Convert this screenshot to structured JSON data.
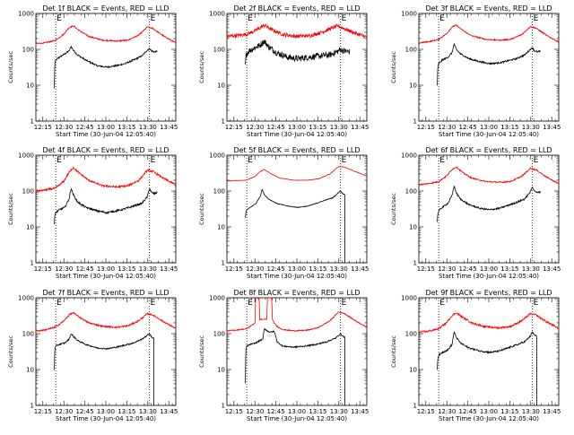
{
  "figure": {
    "ylabel": "Counts/sec",
    "xlabel": "Start Time (30-Jun-04 12:05:40)",
    "ytick_labels": [
      "1",
      "10",
      "100",
      "1000"
    ],
    "xtick_labels": [
      "12:15",
      "12:30",
      "12:45",
      "13:00",
      "13:15",
      "13:30",
      "13:45"
    ],
    "marker_glyph": "E",
    "colors": {
      "events": "#000000",
      "lld": "#ff0000",
      "frame": "#000000",
      "background": "#ffffff"
    }
  },
  "chart_data": [
    {
      "type": "line",
      "title": "Det 1f BLACK = Events, RED = LLD",
      "xlabel": "Start Time (30-Jun-04 12:05:40)",
      "ylabel": "Counts/sec",
      "x_unit": "minutes after 12:05:40",
      "xlim": [
        4.3,
        104.3
      ],
      "ylim": [
        1,
        1000
      ],
      "yscale": "log",
      "xticks": [
        9.3,
        24.3,
        39.3,
        54.3,
        69.3,
        84.3,
        99.3
      ],
      "markers_x": [
        18.5,
        85.5
      ],
      "series": [
        {
          "name": "Events",
          "color": "#000000",
          "x": [
            17.5,
            17.8,
            18.5,
            21,
            25,
            28,
            29.5,
            31,
            34,
            40,
            48,
            55,
            62,
            68,
            74,
            80,
            84,
            85.5,
            87,
            89,
            91
          ],
          "y": [
            8,
            40,
            50,
            60,
            75,
            90,
            120,
            95,
            70,
            50,
            35,
            32,
            35,
            40,
            50,
            65,
            95,
            105,
            90,
            85,
            88
          ],
          "noise": 0.05,
          "end": "none"
        },
        {
          "name": "LLD",
          "color": "#ff0000",
          "x": [
            4.3,
            10,
            18,
            24,
            28,
            31,
            36,
            42,
            52,
            62,
            70,
            78,
            84,
            88,
            96,
            104.3
          ],
          "y": [
            145,
            150,
            175,
            260,
            400,
            450,
            320,
            230,
            180,
            170,
            180,
            250,
            420,
            380,
            230,
            150
          ],
          "noise": 0.04
        }
      ]
    },
    {
      "type": "line",
      "title": "Det 2f BLACK = Events, RED = LLD",
      "xlabel": "Start Time (30-Jun-04 12:05:40)",
      "ylabel": "Counts/sec",
      "x_unit": "minutes after 12:05:40",
      "xlim": [
        4.3,
        104.3
      ],
      "ylim": [
        1,
        1000
      ],
      "yscale": "log",
      "xticks": [
        9.3,
        24.3,
        39.3,
        54.3,
        69.3,
        84.3,
        99.3
      ],
      "markers_x": [
        18.5,
        85.5
      ],
      "series": [
        {
          "name": "Events",
          "color": "#000000",
          "x": [
            17.5,
            18,
            20,
            24,
            28,
            31,
            34,
            40,
            48,
            55,
            62,
            70,
            78,
            84,
            85.5,
            88,
            92
          ],
          "y": [
            35,
            70,
            90,
            110,
            130,
            170,
            120,
            80,
            60,
            55,
            60,
            65,
            70,
            90,
            100,
            90,
            85
          ],
          "noise": 0.2,
          "end": "none"
        },
        {
          "name": "LLD",
          "color": "#ff0000",
          "x": [
            4.3,
            10,
            18,
            24,
            28,
            31,
            36,
            44,
            54,
            64,
            72,
            80,
            84,
            88,
            96,
            104.3
          ],
          "y": [
            230,
            240,
            260,
            320,
            400,
            470,
            360,
            260,
            230,
            240,
            300,
            400,
            450,
            380,
            280,
            220
          ],
          "noise": 0.12
        }
      ]
    },
    {
      "type": "line",
      "title": "Det 3f BLACK = Events, RED = LLD",
      "xlabel": "Start Time (30-Jun-04 12:05:40)",
      "ylabel": "Counts/sec",
      "x_unit": "minutes after 12:05:40",
      "xlim": [
        4.3,
        104.3
      ],
      "ylim": [
        1,
        1000
      ],
      "yscale": "log",
      "xticks": [
        9.3,
        24.3,
        39.3,
        54.3,
        69.3,
        84.3,
        99.3
      ],
      "markers_x": [
        18.5,
        85.5
      ],
      "series": [
        {
          "name": "Events",
          "color": "#000000",
          "x": [
            17.5,
            17.8,
            18.5,
            21,
            25,
            28,
            29.5,
            31,
            34,
            40,
            48,
            55,
            62,
            68,
            74,
            80,
            84,
            85.5,
            87,
            89,
            91
          ],
          "y": [
            10,
            30,
            40,
            50,
            60,
            80,
            140,
            100,
            75,
            55,
            45,
            40,
            42,
            48,
            55,
            70,
            100,
            110,
            90,
            85,
            88
          ],
          "noise": 0.05,
          "end": "none"
        },
        {
          "name": "LLD",
          "color": "#ff0000",
          "x": [
            4.3,
            10,
            18,
            24,
            28,
            31,
            36,
            42,
            52,
            62,
            70,
            78,
            84,
            88,
            96,
            104.3
          ],
          "y": [
            150,
            160,
            185,
            270,
            420,
            470,
            330,
            240,
            190,
            180,
            190,
            260,
            430,
            390,
            240,
            160
          ],
          "noise": 0.04
        }
      ]
    },
    {
      "type": "line",
      "title": "Det 4f BLACK = Events, RED = LLD",
      "xlabel": "Start Time (30-Jun-04 12:05:40)",
      "ylabel": "Counts/sec",
      "x_unit": "minutes after 12:05:40",
      "xlim": [
        4.3,
        104.3
      ],
      "ylim": [
        1,
        1000
      ],
      "yscale": "log",
      "xticks": [
        9.3,
        24.3,
        39.3,
        54.3,
        69.3,
        84.3,
        99.3
      ],
      "markers_x": [
        18.5,
        85.5
      ],
      "series": [
        {
          "name": "Events",
          "color": "#000000",
          "x": [
            17.5,
            17.8,
            18.5,
            21,
            25,
            28,
            29.5,
            31,
            34,
            40,
            48,
            55,
            62,
            68,
            74,
            80,
            84,
            85.5,
            87,
            89,
            91
          ],
          "y": [
            12,
            20,
            25,
            30,
            35,
            60,
            120,
            80,
            50,
            35,
            28,
            25,
            28,
            32,
            38,
            45,
            70,
            120,
            90,
            85,
            90
          ],
          "noise": 0.06,
          "end": "none"
        },
        {
          "name": "LLD",
          "color": "#ff0000",
          "x": [
            4.3,
            10,
            18,
            24,
            28,
            31,
            36,
            42,
            52,
            62,
            70,
            78,
            84,
            88,
            96,
            104.3
          ],
          "y": [
            100,
            105,
            120,
            180,
            330,
            450,
            300,
            200,
            140,
            130,
            140,
            200,
            380,
            350,
            220,
            150
          ],
          "noise": 0.06
        }
      ]
    },
    {
      "type": "line",
      "title": "Det 5f BLACK = Events, RED = LLD",
      "xlabel": "Start Time (30-Jun-04 12:05:40)",
      "ylabel": "Counts/sec",
      "x_unit": "minutes after 12:05:40",
      "xlim": [
        4.3,
        104.3
      ],
      "ylim": [
        1,
        1000
      ],
      "yscale": "log",
      "xticks": [
        9.3,
        24.3,
        39.3,
        54.3,
        69.3,
        84.3,
        99.3
      ],
      "markers_x": [
        18.5,
        85.5
      ],
      "series": [
        {
          "name": "Events",
          "color": "#000000",
          "x": [
            17.5,
            17.8,
            18.5,
            21,
            25,
            28,
            29.5,
            31,
            34,
            40,
            48,
            55,
            62,
            68,
            74,
            80,
            84,
            85.5,
            87,
            88.5
          ],
          "y": [
            18,
            25,
            30,
            35,
            45,
            70,
            110,
            80,
            60,
            45,
            38,
            35,
            38,
            45,
            55,
            65,
            90,
            100,
            85,
            80
          ],
          "noise": 0.02,
          "end": "drop"
        },
        {
          "name": "LLD",
          "color": "#ff0000",
          "x": [
            4.3,
            10,
            18,
            24,
            28,
            31,
            36,
            42,
            52,
            62,
            70,
            78,
            84,
            88,
            96,
            104.3
          ],
          "y": [
            190,
            195,
            200,
            250,
            350,
            400,
            300,
            230,
            200,
            200,
            220,
            300,
            480,
            470,
            350,
            260
          ],
          "noise": 0.01
        }
      ]
    },
    {
      "type": "line",
      "title": "Det 6f BLACK = Events, RED = LLD",
      "xlabel": "Start Time (30-Jun-04 12:05:40)",
      "ylabel": "Counts/sec",
      "x_unit": "minutes after 12:05:40",
      "xlim": [
        4.3,
        104.3
      ],
      "ylim": [
        1,
        1000
      ],
      "yscale": "log",
      "xticks": [
        9.3,
        24.3,
        39.3,
        54.3,
        69.3,
        84.3,
        99.3
      ],
      "markers_x": [
        18.5,
        85.5
      ],
      "series": [
        {
          "name": "Events",
          "color": "#000000",
          "x": [
            17.5,
            17.8,
            18.5,
            21,
            25,
            28,
            29.5,
            31,
            34,
            40,
            48,
            55,
            62,
            68,
            74,
            80,
            84,
            85.5,
            87,
            89,
            91
          ],
          "y": [
            14,
            22,
            28,
            35,
            45,
            75,
            140,
            90,
            60,
            42,
            33,
            30,
            33,
            40,
            48,
            60,
            95,
            130,
            100,
            90,
            95
          ],
          "noise": 0.05,
          "end": "none"
        },
        {
          "name": "LLD",
          "color": "#ff0000",
          "x": [
            4.3,
            10,
            18,
            24,
            28,
            31,
            36,
            42,
            52,
            62,
            70,
            78,
            84,
            88,
            96,
            104.3
          ],
          "y": [
            150,
            160,
            180,
            260,
            400,
            470,
            320,
            230,
            185,
            175,
            185,
            260,
            430,
            390,
            240,
            160
          ],
          "noise": 0.04
        }
      ]
    },
    {
      "type": "line",
      "title": "Det 7f BLACK = Events, RED = LLD",
      "xlabel": "Start Time (30-Jun-04 12:05:40)",
      "ylabel": "Counts/sec",
      "x_unit": "minutes after 12:05:40",
      "xlim": [
        4.3,
        104.3
      ],
      "ylim": [
        1,
        1000
      ],
      "yscale": "log",
      "xticks": [
        9.3,
        24.3,
        39.3,
        54.3,
        69.3,
        84.3,
        99.3
      ],
      "markers_x": [
        18.5,
        85.5
      ],
      "series": [
        {
          "name": "Events",
          "color": "#000000",
          "x": [
            17.5,
            17.8,
            18.5,
            21,
            25,
            28,
            29.5,
            31,
            34,
            40,
            48,
            55,
            62,
            68,
            74,
            80,
            84,
            85.5,
            87,
            88.5
          ],
          "y": [
            10,
            35,
            45,
            50,
            55,
            70,
            100,
            85,
            65,
            50,
            40,
            38,
            42,
            48,
            55,
            70,
            90,
            100,
            80,
            75
          ],
          "noise": 0.04,
          "end": "drop"
        },
        {
          "name": "LLD",
          "color": "#ff0000",
          "x": [
            4.3,
            10,
            18,
            24,
            28,
            31,
            36,
            42,
            52,
            62,
            70,
            78,
            84,
            88,
            96,
            104.3
          ],
          "y": [
            120,
            125,
            150,
            220,
            330,
            380,
            280,
            200,
            160,
            150,
            165,
            230,
            360,
            330,
            210,
            140
          ],
          "noise": 0.05
        }
      ]
    },
    {
      "type": "line",
      "title": "Det 8f BLACK = Events, RED = LLD",
      "xlabel": "Start Time (30-Jun-04 12:05:40)",
      "ylabel": "Counts/sec",
      "x_unit": "minutes after 12:05:40",
      "xlim": [
        4.3,
        104.3
      ],
      "ylim": [
        1,
        1000
      ],
      "yscale": "log",
      "xticks": [
        9.3,
        24.3,
        39.3,
        54.3,
        69.3,
        84.3,
        99.3
      ],
      "markers_x": [
        18.5,
        85.5
      ],
      "series": [
        {
          "name": "Events",
          "color": "#000000",
          "x": [
            17.5,
            17.8,
            18.5,
            21,
            25,
            28,
            30,
            31,
            33,
            35,
            38,
            39.5,
            40,
            44,
            52,
            60,
            68,
            76,
            82,
            85.5,
            87,
            88.5
          ],
          "y": [
            4,
            35,
            45,
            50,
            55,
            65,
            70,
            140,
            120,
            110,
            115,
            80,
            60,
            45,
            42,
            45,
            50,
            60,
            75,
            100,
            85,
            80
          ],
          "noise": 0.04,
          "end": "drop"
        },
        {
          "name": "LLD",
          "color": "#ff0000",
          "x": [
            4.3,
            10,
            18,
            22,
            24.5,
            24.6,
            27.5,
            27.6,
            33,
            33.1,
            36.5,
            36.6,
            37,
            40,
            44,
            52,
            62,
            70,
            78,
            84,
            88,
            96,
            104.3
          ],
          "y": [
            120,
            125,
            135,
            170,
            200,
            1000,
            1000,
            250,
            250,
            1000,
            1000,
            280,
            230,
            160,
            130,
            120,
            125,
            150,
            230,
            400,
            370,
            230,
            150
          ],
          "noise": 0.03
        }
      ]
    },
    {
      "type": "line",
      "title": "Det 9f BLACK = Events, RED = LLD",
      "xlabel": "Start Time (30-Jun-04 12:05:40)",
      "ylabel": "Counts/sec",
      "x_unit": "minutes after 12:05:40",
      "xlim": [
        4.3,
        104.3
      ],
      "ylim": [
        1,
        1000
      ],
      "yscale": "log",
      "xticks": [
        9.3,
        24.3,
        39.3,
        54.3,
        69.3,
        84.3,
        99.3
      ],
      "markers_x": [
        18.5,
        85.5
      ],
      "series": [
        {
          "name": "Events",
          "color": "#000000",
          "x": [
            17.5,
            17.8,
            18.5,
            21,
            25,
            28,
            29.5,
            31,
            34,
            40,
            48,
            55,
            62,
            68,
            74,
            80,
            84,
            85.5,
            87,
            88.5
          ],
          "y": [
            10,
            20,
            25,
            30,
            35,
            50,
            110,
            80,
            55,
            40,
            33,
            30,
            33,
            40,
            48,
            60,
            85,
            110,
            90,
            85
          ],
          "noise": 0.05,
          "end": "drop"
        },
        {
          "name": "LLD",
          "color": "#ff0000",
          "x": [
            4.3,
            10,
            18,
            24,
            28,
            31,
            36,
            42,
            52,
            62,
            70,
            78,
            84,
            88,
            96,
            104.3
          ],
          "y": [
            110,
            115,
            135,
            200,
            320,
            380,
            280,
            200,
            155,
            145,
            160,
            230,
            360,
            330,
            210,
            140
          ],
          "noise": 0.06
        }
      ]
    }
  ]
}
